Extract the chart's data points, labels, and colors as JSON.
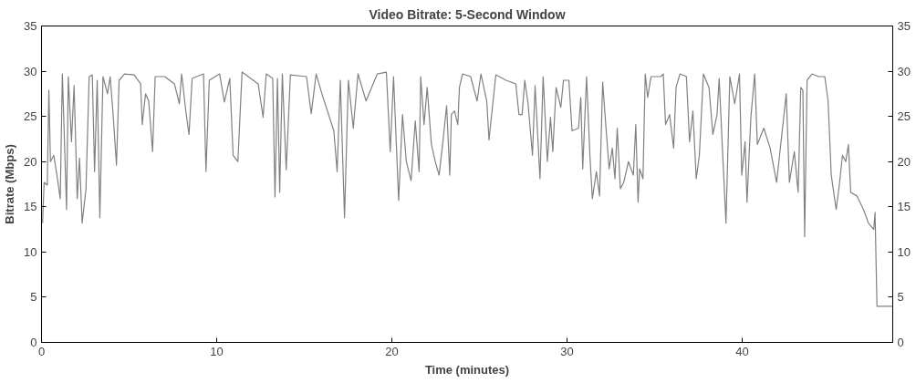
{
  "chart_data": {
    "type": "line",
    "title": "Video Bitrate: 5-Second Window",
    "xlabel": "Time (minutes)",
    "ylabel": "Bitrate (Mbps)",
    "xlim": [
      0,
      48.6
    ],
    "xticks": [
      0,
      10,
      20,
      30,
      40
    ],
    "ylim": [
      0,
      35
    ],
    "yticks": [
      0,
      5,
      10,
      15,
      20,
      25,
      30,
      35
    ],
    "y2lim": [
      0,
      35
    ],
    "y2ticks": [
      0,
      5,
      10,
      15,
      20,
      25,
      30,
      35
    ],
    "grid": false,
    "series": [
      {
        "color": "#808080",
        "x": [
          0.06,
          0.15,
          0.33,
          0.42,
          0.51,
          0.7,
          0.88,
          1.07,
          1.19,
          1.43,
          1.53,
          1.71,
          1.86,
          2.04,
          2.17,
          2.32,
          2.54,
          2.72,
          2.9,
          3.03,
          3.18,
          3.33,
          3.51,
          3.77,
          3.92,
          4.1,
          4.28,
          4.43,
          4.74,
          5.29,
          5.66,
          5.75,
          5.94,
          6.12,
          6.34,
          6.49,
          7.04,
          7.59,
          7.87,
          8.0,
          8.24,
          8.42,
          8.6,
          9.25,
          9.39,
          9.58,
          10.17,
          10.44,
          10.75,
          10.94,
          11.21,
          11.45,
          12.37,
          12.65,
          12.83,
          13.2,
          13.33,
          13.47,
          13.6,
          13.75,
          13.97,
          14.21,
          15.13,
          15.4,
          15.68,
          16.01,
          16.69,
          16.88,
          17.06,
          17.3,
          17.52,
          17.8,
          18.07,
          18.53,
          19.17,
          19.69,
          19.91,
          20.1,
          20.39,
          20.61,
          20.83,
          21.1,
          21.34,
          21.56,
          21.65,
          21.84,
          22.02,
          22.26,
          22.48,
          22.7,
          22.94,
          23.13,
          23.31,
          23.4,
          23.58,
          23.77,
          23.86,
          24.04,
          24.5,
          24.87,
          25.09,
          25.42,
          25.55,
          25.94,
          26.52,
          27.08,
          27.26,
          27.44,
          27.59,
          27.78,
          28.03,
          28.18,
          28.46,
          28.64,
          28.88,
          29.06,
          29.19,
          29.38,
          29.65,
          29.8,
          30.11,
          30.29,
          30.66,
          30.79,
          30.9,
          31.12,
          31.31,
          31.45,
          31.68,
          31.86,
          32.04,
          32.23,
          32.41,
          32.59,
          32.74,
          32.87,
          33.05,
          33.24,
          33.51,
          33.79,
          33.93,
          34.06,
          34.15,
          34.34,
          34.47,
          34.61,
          34.8,
          35.35,
          35.5,
          35.63,
          35.86,
          36.09,
          36.23,
          36.45,
          36.82,
          37.0,
          37.19,
          37.38,
          37.56,
          37.79,
          38.11,
          38.33,
          38.57,
          38.69,
          38.93,
          39.08,
          39.3,
          39.58,
          39.85,
          39.98,
          40.17,
          40.28,
          40.5,
          40.72,
          40.87,
          41.24,
          41.6,
          41.97,
          42.33,
          42.52,
          42.7,
          42.98,
          43.2,
          43.35,
          43.47,
          43.57,
          43.71,
          43.99,
          44.36,
          44.72,
          44.91,
          45.09,
          45.37,
          45.55,
          45.73,
          45.92,
          46.07,
          46.2,
          46.56,
          46.93,
          47.21,
          47.52,
          47.59,
          47.7,
          48.58
        ],
        "values": [
          13.2,
          17.7,
          17.4,
          27.9,
          20,
          20.7,
          18.5,
          15.9,
          29.7,
          14.7,
          29.4,
          22.2,
          28.4,
          15.9,
          20.4,
          13.2,
          17,
          29.4,
          29.6,
          18.9,
          29,
          13.8,
          29.4,
          27.5,
          29.4,
          24.9,
          19.6,
          29,
          29.7,
          29.6,
          28.6,
          24.1,
          27.5,
          26.7,
          21.1,
          29.4,
          29.4,
          28.6,
          26.4,
          29.7,
          25.6,
          23,
          29.2,
          29.7,
          18.9,
          29,
          29.7,
          26.6,
          29.2,
          20.7,
          20,
          29.9,
          28.6,
          24.9,
          29.7,
          29.2,
          16.1,
          29.2,
          16.6,
          29.7,
          19.1,
          29.6,
          29.4,
          25.3,
          29.7,
          27.5,
          23.4,
          18.9,
          29,
          13.8,
          29,
          23.7,
          29.7,
          26.7,
          29.7,
          29.9,
          21.1,
          29.4,
          15.7,
          25.2,
          20,
          17.9,
          24.5,
          18.9,
          29.4,
          24.1,
          28.2,
          21.9,
          20,
          18.5,
          22.6,
          26.2,
          18.5,
          25.2,
          25.6,
          24.1,
          28.2,
          29.7,
          29.4,
          26.7,
          29.7,
          26.7,
          22.4,
          29.6,
          29,
          28.6,
          25.2,
          25.2,
          29,
          26.4,
          20.7,
          28.4,
          18.1,
          29.4,
          20,
          24.9,
          21.1,
          28.2,
          26,
          29,
          29,
          23.4,
          23.7,
          27.1,
          19.2,
          29.4,
          20.7,
          15.9,
          18.9,
          16.2,
          28.8,
          23.7,
          19.2,
          21.5,
          18.1,
          23.7,
          17,
          17.7,
          20,
          18.5,
          24.1,
          15.5,
          19.2,
          18.1,
          29.7,
          27.1,
          29.4,
          29.4,
          29.7,
          24.1,
          25.2,
          21.5,
          28.2,
          29.7,
          29.4,
          22.2,
          25.6,
          18.1,
          20.7,
          29.7,
          28.2,
          23,
          25.2,
          29.2,
          19.2,
          13.2,
          29.4,
          26.4,
          29.7,
          18.5,
          22.2,
          15.5,
          24.9,
          29.7,
          21.9,
          23.7,
          21.5,
          17.7,
          24.1,
          27.5,
          17.7,
          21.1,
          16.6,
          28.2,
          27.9,
          11.7,
          29,
          29.7,
          29.4,
          29.4,
          26.7,
          18.5,
          14.7,
          17.4,
          20.7,
          20,
          21.9,
          16.6,
          16.2,
          14.7,
          13.2,
          12.5,
          14.4,
          4,
          4
        ]
      }
    ]
  }
}
